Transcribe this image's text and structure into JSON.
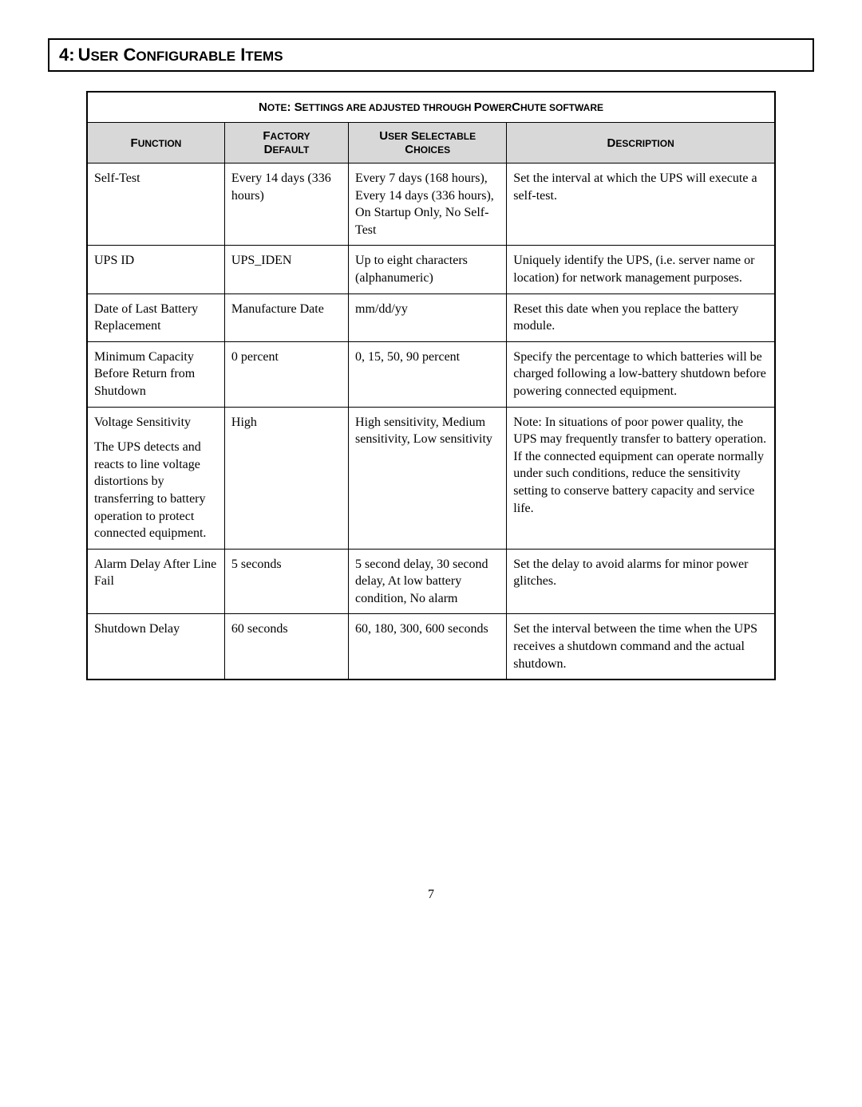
{
  "section": {
    "number": "4:",
    "title_parts": [
      "U",
      "SER",
      " C",
      "ONFIGURABLE",
      " I",
      "TEMS"
    ]
  },
  "table": {
    "note_parts": [
      "N",
      "OTE",
      ":  S",
      "ETTINGS ARE ADJUSTED THROUGH ",
      "P",
      "OWER",
      "C",
      "HUTE SOFTWARE"
    ],
    "columns": {
      "c1_parts": [
        "F",
        "UNCTION"
      ],
      "c2_parts": [
        "F",
        "ACTORY",
        " D",
        "EFAULT"
      ],
      "c3_parts": [
        "U",
        "SER",
        " S",
        "ELECTABLE",
        " C",
        "HOICES"
      ],
      "c4_parts": [
        "D",
        "ESCRIPTION"
      ]
    },
    "col_widths": [
      "20%",
      "18%",
      "23%",
      "39%"
    ],
    "rows": [
      {
        "function": "Self-Test",
        "default": "Every 14 days (336 hours)",
        "choices": "Every 7 days (168 hours), Every 14 days (336 hours), On Startup Only, No Self-Test",
        "description": "Set the interval at which the UPS will execute a self-test."
      },
      {
        "function": "UPS ID",
        "default": "UPS_IDEN",
        "choices": "Up to eight characters (alphanumeric)",
        "description": "Uniquely identify the UPS, (i.e. server name or location) for network management purposes."
      },
      {
        "function": "Date of Last Battery Replacement",
        "default": "Manufacture Date",
        "choices": "mm/dd/yy",
        "description": "Reset this date when you replace the battery module."
      },
      {
        "function": "Minimum Capacity Before Return from Shutdown",
        "default": "0 percent",
        "choices": "0, 15, 50, 90 percent",
        "description": "Specify the percentage to which batteries will be charged following a low-battery shutdown before powering connected equipment."
      },
      {
        "function": "Voltage Sensitivity\nThe UPS detects and reacts to line voltage distortions by transferring to battery operation to protect connected equipment.",
        "default": "High",
        "choices": "High sensitivity, Medium sensitivity, Low sensitivity",
        "description": "Note: In situations of poor power quality, the UPS may frequently transfer to battery operation. If the connected equipment can operate normally under such conditions, reduce the sensitivity setting to conserve battery capacity and service life."
      },
      {
        "function": "Alarm Delay After Line Fail",
        "default": "5 seconds",
        "choices": "5 second delay, 30 second delay, At low battery condition, No alarm",
        "description": "Set the delay to avoid alarms for minor power glitches."
      },
      {
        "function": "Shutdown Delay",
        "default": "60 seconds",
        "choices": "60, 180, 300, 600 seconds",
        "description": "Set the interval between the time when the UPS receives a shutdown command and the actual shutdown."
      }
    ]
  },
  "page_number": "7",
  "colors": {
    "header_bg": "#d8d8d8",
    "border": "#000000",
    "text": "#000000",
    "bg": "#ffffff"
  },
  "fonts": {
    "body_family": "Times New Roman",
    "header_family": "Arial",
    "body_size_pt": 12,
    "section_title_size_pt": 16
  }
}
